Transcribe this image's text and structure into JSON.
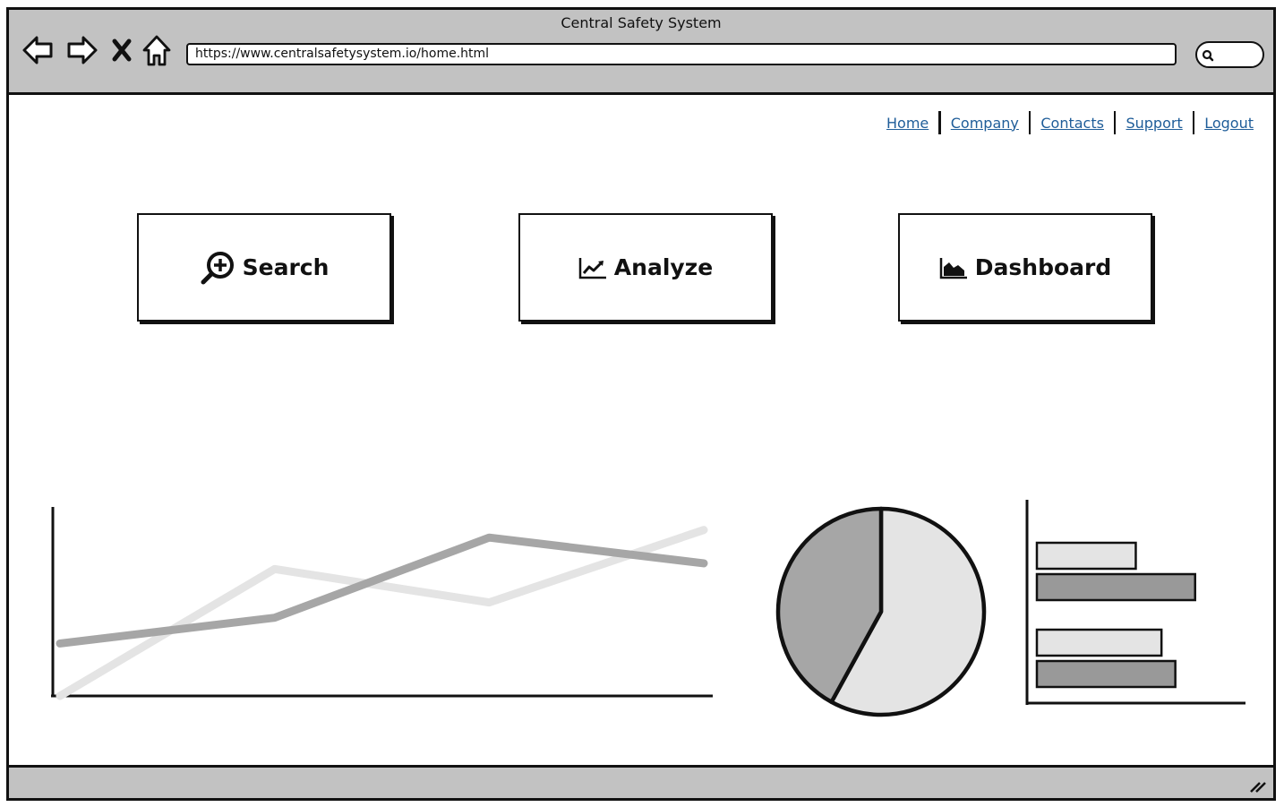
{
  "window": {
    "title": "Central Safety System"
  },
  "browser": {
    "url": "https://www.centralsafetysystem.io/home.html",
    "nav_icons": [
      "back-arrow-icon",
      "forward-arrow-icon",
      "stop-icon",
      "home-icon"
    ]
  },
  "top_nav": {
    "links": [
      "Home",
      "Company",
      "Contacts",
      "Support",
      "Logout"
    ]
  },
  "actions": [
    {
      "label": "Search",
      "icon": "search-plus-icon"
    },
    {
      "label": "Analyze",
      "icon": "line-chart-icon"
    },
    {
      "label": "Dashboard",
      "icon": "area-chart-icon"
    }
  ],
  "colors": {
    "chrome": "#c2c2c2",
    "link": "#1f5d99",
    "series_light": "#e4e4e4",
    "series_dark": "#a6a6a6",
    "bar_dark": "#999999"
  },
  "chart_data": [
    {
      "type": "line",
      "x": [
        0,
        1,
        2,
        3
      ],
      "series": [
        {
          "values": [
            0,
            1.33,
            0.98,
            1.74
          ]
        },
        {
          "values": [
            0.55,
            0.82,
            1.66,
            1.39
          ]
        }
      ],
      "ylim": [
        0,
        2
      ]
    },
    {
      "type": "pie",
      "values": [
        58,
        42
      ]
    },
    {
      "type": "bar",
      "orientation": "horizontal",
      "series": [
        {
          "values": [
            0.5,
            0.8
          ]
        },
        {
          "values": [
            0.63,
            0.7
          ]
        }
      ],
      "xlim": [
        0,
        1.1
      ]
    }
  ]
}
